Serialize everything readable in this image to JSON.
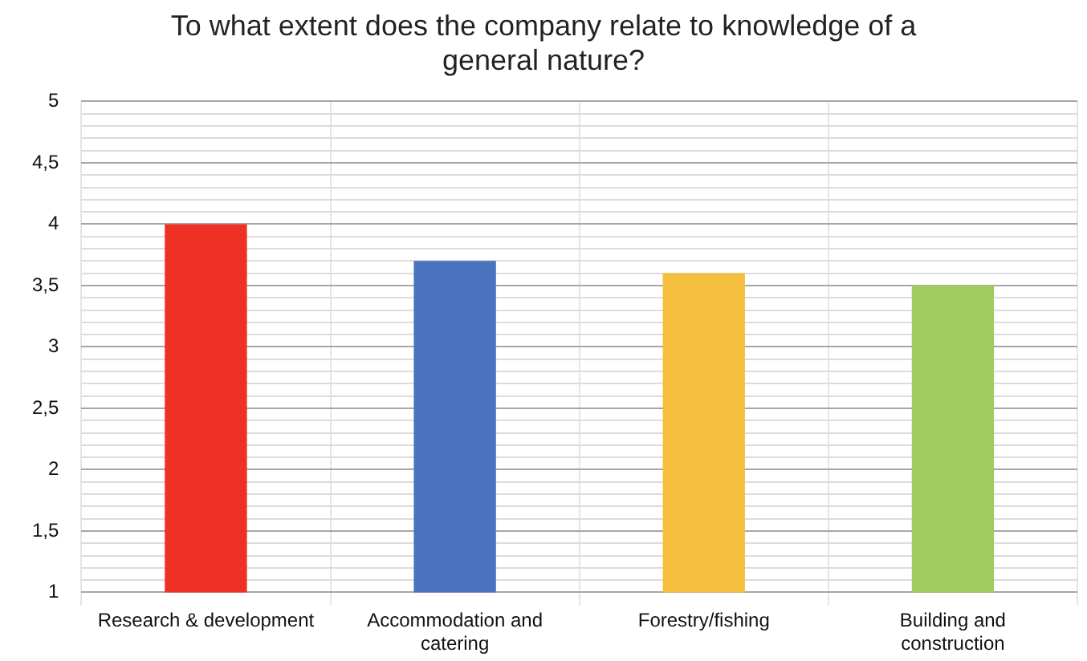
{
  "chart_data": {
    "type": "bar",
    "title": "To what extent does the company relate to knowledge of a general nature?",
    "categories": [
      "Research & development",
      "Accommodation and catering",
      "Forestry/fishing",
      "Building and construction"
    ],
    "values": [
      4,
      3.7,
      3.6,
      3.5
    ],
    "colors": [
      "#ee3124",
      "#4a72bf",
      "#f5bf40",
      "#9fcb5f"
    ],
    "ylim": [
      1,
      5
    ],
    "yticks": [
      {
        "value": 1,
        "label": "1"
      },
      {
        "value": 1.1,
        "label": null
      },
      {
        "value": 1.2,
        "label": null
      },
      {
        "value": 1.3,
        "label": null
      },
      {
        "value": 1.4,
        "label": null
      },
      {
        "value": 1.5,
        "label": "1,5"
      },
      {
        "value": 1.6,
        "label": null
      },
      {
        "value": 1.7,
        "label": null
      },
      {
        "value": 1.8,
        "label": null
      },
      {
        "value": 1.9,
        "label": null
      },
      {
        "value": 2,
        "label": "2"
      },
      {
        "value": 2.1,
        "label": null
      },
      {
        "value": 2.2,
        "label": null
      },
      {
        "value": 2.3,
        "label": null
      },
      {
        "value": 2.4,
        "label": null
      },
      {
        "value": 2.5,
        "label": "2,5"
      },
      {
        "value": 2.6,
        "label": null
      },
      {
        "value": 2.7,
        "label": null
      },
      {
        "value": 2.8,
        "label": null
      },
      {
        "value": 2.9,
        "label": null
      },
      {
        "value": 3,
        "label": "3"
      },
      {
        "value": 3.1,
        "label": null
      },
      {
        "value": 3.2,
        "label": null
      },
      {
        "value": 3.3,
        "label": null
      },
      {
        "value": 3.4,
        "label": null
      },
      {
        "value": 3.5,
        "label": "3,5"
      },
      {
        "value": 3.6,
        "label": null
      },
      {
        "value": 3.7,
        "label": null
      },
      {
        "value": 3.8,
        "label": null
      },
      {
        "value": 3.9,
        "label": null
      },
      {
        "value": 4,
        "label": "4"
      },
      {
        "value": 4.1,
        "label": null
      },
      {
        "value": 4.2,
        "label": null
      },
      {
        "value": 4.3,
        "label": null
      },
      {
        "value": 4.4,
        "label": null
      },
      {
        "value": 4.5,
        "label": "4,5"
      },
      {
        "value": 4.6,
        "label": null
      },
      {
        "value": 4.7,
        "label": null
      },
      {
        "value": 4.8,
        "label": null
      },
      {
        "value": 4.9,
        "label": null
      },
      {
        "value": 5,
        "label": "5"
      }
    ],
    "grid": true,
    "legend": false
  }
}
